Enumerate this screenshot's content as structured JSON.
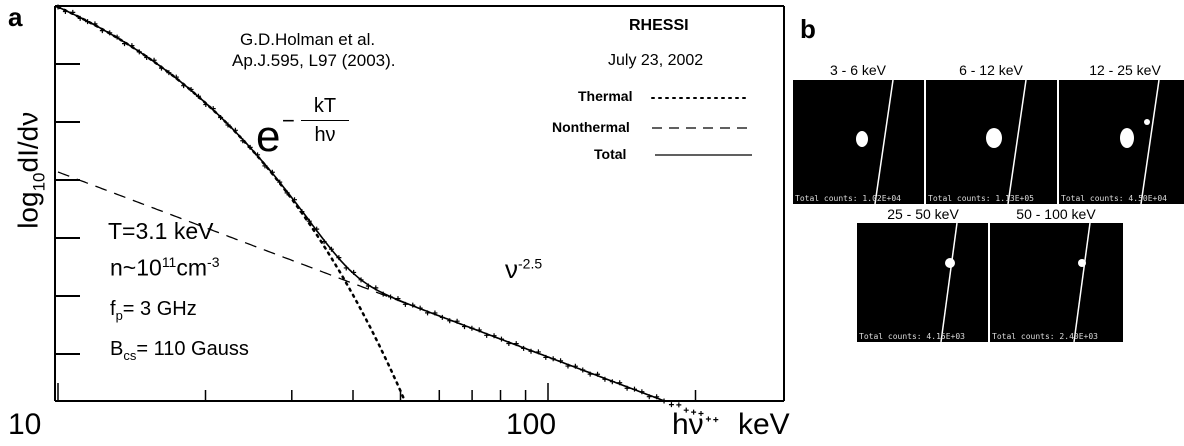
{
  "panel_a": {
    "letter": "a",
    "reference_line1": "G.D.Holman et al.",
    "reference_line2": "Ap.J.595, L97 (2003).",
    "instrument": "RHESSI",
    "date": "July 23, 2002",
    "legend": [
      {
        "label": "Thermal",
        "style": "dotted"
      },
      {
        "label": "Nonthermal",
        "style": "dashed"
      },
      {
        "label": "Total",
        "style": "solid"
      }
    ],
    "y_axis_label": {
      "base": "log",
      "sub": "10",
      "rest": "dI/dν"
    },
    "x_axis_unit_symbol": "hν",
    "x_axis_unit": "keV",
    "x_ticks": [
      "10",
      "100"
    ],
    "thermal_formula": {
      "base": "e",
      "sign": "−",
      "numerator": "kT",
      "denominator": "hν"
    },
    "power_law": {
      "base": "ν",
      "exponent": "-2.5"
    },
    "params": {
      "temperature": "T=3.1 keV",
      "density_prefix": "n~10",
      "density_exp": "11",
      "density_unit": "cm",
      "density_unit_exp": "-3",
      "fp_symbol": "f",
      "fp_sub": "p",
      "fp_value": "= 3 GHz",
      "bcs_symbol": "B",
      "bcs_sub": "cs",
      "bcs_value": "= 110 Gauss"
    }
  },
  "chart_data": {
    "type": "line",
    "xscale": "log",
    "x_range_keV": [
      10,
      220
    ],
    "series": [
      {
        "name": "Thermal",
        "style": "dotted",
        "kT_keV": 3.1
      },
      {
        "name": "Nonthermal",
        "style": "dashed",
        "power_index": -2.5
      },
      {
        "name": "Total",
        "style": "solid"
      }
    ]
  },
  "panel_b": {
    "letter": "b",
    "images": [
      {
        "title": "3 - 6 keV",
        "counts": "Total counts: 1.02E+04"
      },
      {
        "title": "6 - 12 keV",
        "counts": "Total counts: 1.13E+05"
      },
      {
        "title": "12 - 25 keV",
        "counts": "Total counts: 4.50E+04"
      },
      {
        "title": "25 - 50 keV",
        "counts": "Total counts: 4.15E+03"
      },
      {
        "title": "50 - 100 keV",
        "counts": "Total counts: 2.40E+03"
      }
    ]
  }
}
